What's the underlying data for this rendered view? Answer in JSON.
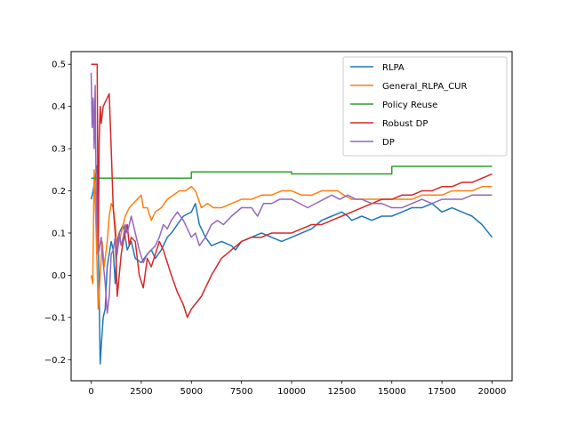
{
  "chart_data": {
    "type": "line",
    "title": "",
    "xlabel": "",
    "ylabel": "",
    "xlim": [
      -1000,
      21000
    ],
    "ylim": [
      -0.25,
      0.53
    ],
    "x_ticks": [
      0,
      2500,
      5000,
      7500,
      10000,
      12500,
      15000,
      17500,
      20000
    ],
    "y_ticks": [
      -0.2,
      -0.1,
      0.0,
      0.1,
      0.2,
      0.3,
      0.4,
      0.5
    ],
    "x_tick_labels": [
      "0",
      "2500",
      "5000",
      "7500",
      "10000",
      "12500",
      "15000",
      "17500",
      "20000"
    ],
    "y_tick_labels": [
      "−0.2",
      "−0.1",
      "0.0",
      "0.1",
      "0.2",
      "0.3",
      "0.4",
      "0.5"
    ],
    "grid": false,
    "legend_position": "top-right",
    "series": [
      {
        "name": "RLPA",
        "color": "#1f77b4",
        "points": [
          [
            0,
            0.18
          ],
          [
            100,
            0.2
          ],
          [
            200,
            0.23
          ],
          [
            300,
            0.26
          ],
          [
            350,
            0.1
          ],
          [
            400,
            -0.05
          ],
          [
            450,
            -0.21
          ],
          [
            500,
            -0.17
          ],
          [
            600,
            -0.1
          ],
          [
            700,
            -0.08
          ],
          [
            800,
            0.02
          ],
          [
            900,
            0.05
          ],
          [
            1000,
            0.08
          ],
          [
            1100,
            0.06
          ],
          [
            1200,
            -0.02
          ],
          [
            1300,
            0.08
          ],
          [
            1400,
            0.1
          ],
          [
            1600,
            0.12
          ],
          [
            1800,
            0.06
          ],
          [
            2000,
            0.08
          ],
          [
            2200,
            0.04
          ],
          [
            2500,
            0.03
          ],
          [
            2800,
            0.05
          ],
          [
            3000,
            0.06
          ],
          [
            3200,
            0.04
          ],
          [
            3500,
            0.06
          ],
          [
            3800,
            0.09
          ],
          [
            4000,
            0.1
          ],
          [
            4300,
            0.12
          ],
          [
            4600,
            0.14
          ],
          [
            5000,
            0.15
          ],
          [
            5200,
            0.17
          ],
          [
            5400,
            0.12
          ],
          [
            5700,
            0.09
          ],
          [
            6000,
            0.07
          ],
          [
            6500,
            0.08
          ],
          [
            7000,
            0.07
          ],
          [
            7200,
            0.06
          ],
          [
            7500,
            0.08
          ],
          [
            8000,
            0.09
          ],
          [
            8500,
            0.1
          ],
          [
            9000,
            0.09
          ],
          [
            9500,
            0.08
          ],
          [
            10000,
            0.09
          ],
          [
            10500,
            0.1
          ],
          [
            11000,
            0.11
          ],
          [
            11500,
            0.13
          ],
          [
            12000,
            0.14
          ],
          [
            12500,
            0.15
          ],
          [
            12800,
            0.14
          ],
          [
            13000,
            0.13
          ],
          [
            13500,
            0.14
          ],
          [
            14000,
            0.13
          ],
          [
            14500,
            0.14
          ],
          [
            15000,
            0.14
          ],
          [
            15500,
            0.15
          ],
          [
            16000,
            0.16
          ],
          [
            16500,
            0.16
          ],
          [
            17000,
            0.17
          ],
          [
            17500,
            0.15
          ],
          [
            18000,
            0.16
          ],
          [
            18500,
            0.15
          ],
          [
            19000,
            0.14
          ],
          [
            19500,
            0.12
          ],
          [
            20000,
            0.09
          ]
        ]
      },
      {
        "name": "General_RLPA_CUR",
        "color": "#ff7f0e",
        "points": [
          [
            0,
            0.0
          ],
          [
            80,
            -0.02
          ],
          [
            150,
            0.25
          ],
          [
            250,
            0.1
          ],
          [
            350,
            -0.08
          ],
          [
            450,
            0.0
          ],
          [
            550,
            0.08
          ],
          [
            650,
            0.02
          ],
          [
            800,
            0.08
          ],
          [
            900,
            0.14
          ],
          [
            1000,
            0.17
          ],
          [
            1100,
            0.16
          ],
          [
            1200,
            0.12
          ],
          [
            1300,
            0.06
          ],
          [
            1500,
            0.1
          ],
          [
            1700,
            0.14
          ],
          [
            1900,
            0.16
          ],
          [
            2100,
            0.17
          ],
          [
            2300,
            0.18
          ],
          [
            2500,
            0.19
          ],
          [
            2600,
            0.16
          ],
          [
            2800,
            0.16
          ],
          [
            3000,
            0.13
          ],
          [
            3200,
            0.15
          ],
          [
            3500,
            0.16
          ],
          [
            3800,
            0.18
          ],
          [
            4100,
            0.19
          ],
          [
            4400,
            0.2
          ],
          [
            4700,
            0.2
          ],
          [
            5000,
            0.21
          ],
          [
            5200,
            0.2
          ],
          [
            5500,
            0.16
          ],
          [
            5800,
            0.17
          ],
          [
            6100,
            0.16
          ],
          [
            6500,
            0.16
          ],
          [
            7000,
            0.17
          ],
          [
            7500,
            0.18
          ],
          [
            8000,
            0.18
          ],
          [
            8500,
            0.19
          ],
          [
            9000,
            0.19
          ],
          [
            9500,
            0.2
          ],
          [
            10000,
            0.2
          ],
          [
            10500,
            0.19
          ],
          [
            11000,
            0.19
          ],
          [
            11500,
            0.2
          ],
          [
            12000,
            0.2
          ],
          [
            12300,
            0.2
          ],
          [
            12600,
            0.19
          ],
          [
            13000,
            0.18
          ],
          [
            13500,
            0.18
          ],
          [
            14000,
            0.18
          ],
          [
            14500,
            0.18
          ],
          [
            15000,
            0.18
          ],
          [
            15500,
            0.18
          ],
          [
            16000,
            0.18
          ],
          [
            16500,
            0.19
          ],
          [
            17000,
            0.19
          ],
          [
            17500,
            0.19
          ],
          [
            18000,
            0.2
          ],
          [
            18500,
            0.2
          ],
          [
            19000,
            0.2
          ],
          [
            19500,
            0.21
          ],
          [
            20000,
            0.21
          ]
        ]
      },
      {
        "name": "Policy Reuse",
        "color": "#2ca02c",
        "points": [
          [
            0,
            0.23
          ],
          [
            5000,
            0.23
          ],
          [
            5000,
            0.245
          ],
          [
            10000,
            0.245
          ],
          [
            10000,
            0.24
          ],
          [
            15000,
            0.24
          ],
          [
            15000,
            0.258
          ],
          [
            20000,
            0.258
          ]
        ]
      },
      {
        "name": "Robust DP",
        "color": "#d62728",
        "points": [
          [
            0,
            0.5
          ],
          [
            300,
            0.5
          ],
          [
            350,
            0.05
          ],
          [
            400,
            0.32
          ],
          [
            450,
            0.4
          ],
          [
            500,
            0.36
          ],
          [
            600,
            0.4
          ],
          [
            800,
            0.42
          ],
          [
            900,
            0.43
          ],
          [
            1000,
            0.3
          ],
          [
            1100,
            0.16
          ],
          [
            1200,
            0.1
          ],
          [
            1300,
            -0.05
          ],
          [
            1400,
            0.0
          ],
          [
            1500,
            0.05
          ],
          [
            1600,
            0.08
          ],
          [
            1700,
            0.1
          ],
          [
            1800,
            0.12
          ],
          [
            1900,
            0.07
          ],
          [
            2000,
            0.09
          ],
          [
            2200,
            0.08
          ],
          [
            2400,
            0.0
          ],
          [
            2600,
            -0.03
          ],
          [
            2800,
            0.04
          ],
          [
            3000,
            0.02
          ],
          [
            3200,
            0.05
          ],
          [
            3400,
            0.08
          ],
          [
            3600,
            0.06
          ],
          [
            3800,
            0.03
          ],
          [
            4000,
            0.0
          ],
          [
            4300,
            -0.04
          ],
          [
            4600,
            -0.07
          ],
          [
            4800,
            -0.1
          ],
          [
            5000,
            -0.08
          ],
          [
            5500,
            -0.05
          ],
          [
            6000,
            0.0
          ],
          [
            6500,
            0.04
          ],
          [
            7000,
            0.06
          ],
          [
            7500,
            0.08
          ],
          [
            8000,
            0.09
          ],
          [
            8500,
            0.09
          ],
          [
            9000,
            0.1
          ],
          [
            9500,
            0.1
          ],
          [
            10000,
            0.1
          ],
          [
            10500,
            0.11
          ],
          [
            11000,
            0.12
          ],
          [
            11500,
            0.12
          ],
          [
            12000,
            0.13
          ],
          [
            12500,
            0.14
          ],
          [
            13000,
            0.15
          ],
          [
            13500,
            0.16
          ],
          [
            14000,
            0.17
          ],
          [
            14500,
            0.18
          ],
          [
            15000,
            0.18
          ],
          [
            15500,
            0.19
          ],
          [
            16000,
            0.19
          ],
          [
            16500,
            0.2
          ],
          [
            17000,
            0.2
          ],
          [
            17500,
            0.21
          ],
          [
            18000,
            0.21
          ],
          [
            18500,
            0.22
          ],
          [
            19000,
            0.22
          ],
          [
            19500,
            0.23
          ],
          [
            20000,
            0.24
          ]
        ]
      },
      {
        "name": "DP",
        "color": "#9467bd",
        "points": [
          [
            0,
            0.48
          ],
          [
            50,
            0.35
          ],
          [
            100,
            0.42
          ],
          [
            150,
            0.3
          ],
          [
            200,
            0.45
          ],
          [
            250,
            0.2
          ],
          [
            300,
            0.1
          ],
          [
            350,
            0.05
          ],
          [
            400,
            0.06
          ],
          [
            500,
            0.09
          ],
          [
            600,
            0.03
          ],
          [
            700,
            -0.02
          ],
          [
            800,
            -0.09
          ],
          [
            900,
            -0.05
          ],
          [
            1000,
            0.05
          ],
          [
            1100,
            0.06
          ],
          [
            1200,
            0.09
          ],
          [
            1300,
            0.05
          ],
          [
            1400,
            0.1
          ],
          [
            1500,
            0.07
          ],
          [
            1600,
            0.09
          ],
          [
            1700,
            0.12
          ],
          [
            1800,
            0.1
          ],
          [
            2000,
            0.14
          ],
          [
            2200,
            0.1
          ],
          [
            2400,
            0.06
          ],
          [
            2600,
            0.03
          ],
          [
            2800,
            0.05
          ],
          [
            3000,
            0.06
          ],
          [
            3200,
            0.07
          ],
          [
            3400,
            0.09
          ],
          [
            3600,
            0.12
          ],
          [
            3800,
            0.11
          ],
          [
            4000,
            0.13
          ],
          [
            4300,
            0.15
          ],
          [
            4600,
            0.13
          ],
          [
            4800,
            0.11
          ],
          [
            5000,
            0.09
          ],
          [
            5200,
            0.1
          ],
          [
            5400,
            0.07
          ],
          [
            5700,
            0.09
          ],
          [
            6000,
            0.12
          ],
          [
            6300,
            0.13
          ],
          [
            6600,
            0.12
          ],
          [
            7000,
            0.14
          ],
          [
            7500,
            0.16
          ],
          [
            8000,
            0.16
          ],
          [
            8300,
            0.14
          ],
          [
            8600,
            0.17
          ],
          [
            9000,
            0.17
          ],
          [
            9400,
            0.18
          ],
          [
            10000,
            0.18
          ],
          [
            10400,
            0.17
          ],
          [
            10800,
            0.16
          ],
          [
            11200,
            0.17
          ],
          [
            11600,
            0.18
          ],
          [
            12000,
            0.19
          ],
          [
            12400,
            0.18
          ],
          [
            12800,
            0.19
          ],
          [
            13200,
            0.18
          ],
          [
            13500,
            0.18
          ],
          [
            14000,
            0.17
          ],
          [
            14500,
            0.17
          ],
          [
            15000,
            0.16
          ],
          [
            15500,
            0.16
          ],
          [
            16000,
            0.17
          ],
          [
            16500,
            0.18
          ],
          [
            17000,
            0.17
          ],
          [
            17500,
            0.18
          ],
          [
            18000,
            0.18
          ],
          [
            18500,
            0.18
          ],
          [
            19000,
            0.19
          ],
          [
            19500,
            0.19
          ],
          [
            20000,
            0.19
          ]
        ]
      }
    ]
  }
}
